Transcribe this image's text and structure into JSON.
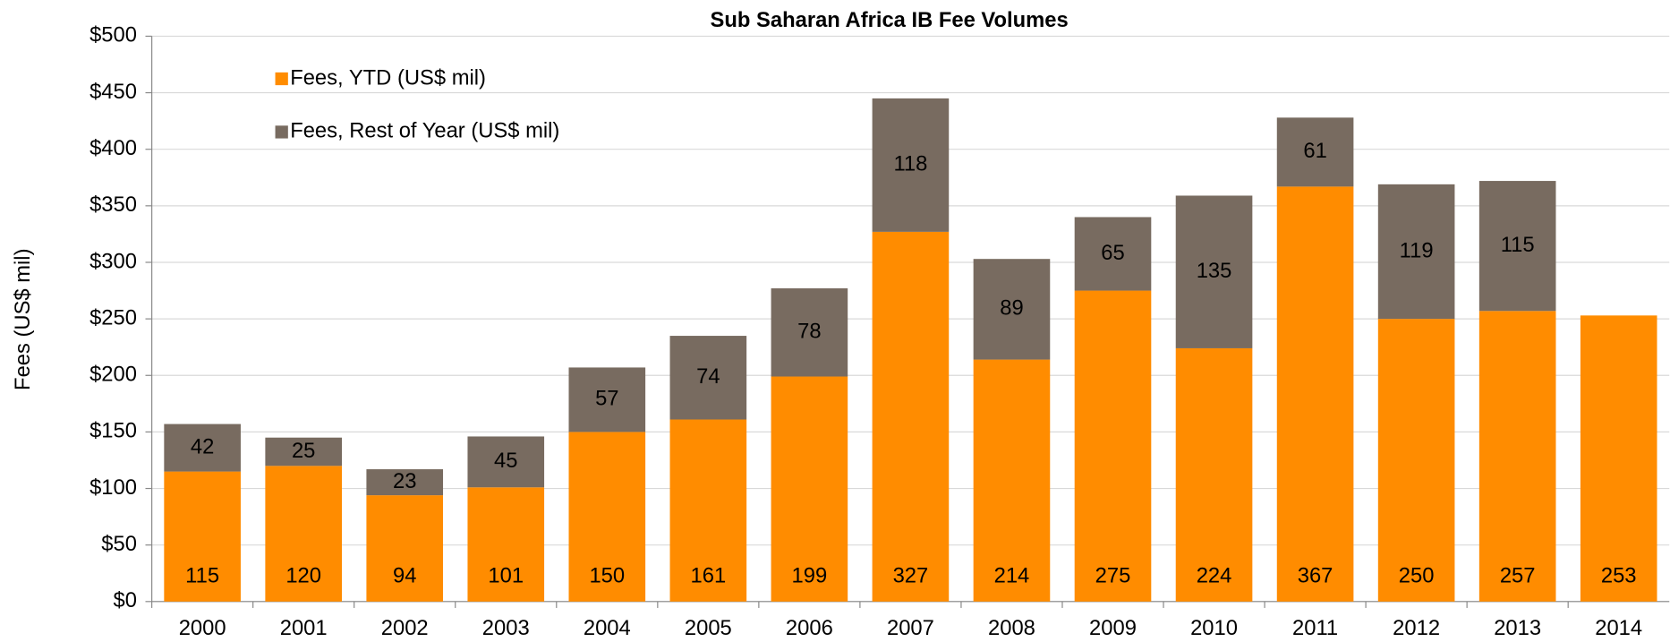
{
  "chart_data": {
    "type": "stacked_bar",
    "title": "Sub Saharan Africa IB Fee Volumes",
    "y_label": "Fees (US$ mil)",
    "categories": [
      "2000",
      "2001",
      "2002",
      "2003",
      "2004",
      "2005",
      "2006",
      "2007",
      "2008",
      "2009",
      "2010",
      "2011",
      "2012",
      "2013",
      "2014"
    ],
    "series": [
      {
        "name": "Fees, YTD (US$ mil)",
        "color": "#ff8c00",
        "values": [
          115,
          120,
          94,
          101,
          150,
          161,
          199,
          327,
          214,
          275,
          224,
          367,
          250,
          257,
          253
        ]
      },
      {
        "name": "Fees, Rest of Year (US$ mil)",
        "color": "#786b60",
        "values": [
          42,
          25,
          23,
          45,
          57,
          74,
          78,
          118,
          89,
          65,
          135,
          61,
          119,
          115,
          null
        ]
      }
    ],
    "ylim": [
      0,
      500
    ],
    "yticks": [
      {
        "value": 0,
        "label": "$0"
      },
      {
        "value": 50,
        "label": "$50"
      },
      {
        "value": 100,
        "label": "$100"
      },
      {
        "value": 150,
        "label": "$150"
      },
      {
        "value": 200,
        "label": "$200"
      },
      {
        "value": 250,
        "label": "$250"
      },
      {
        "value": 300,
        "label": "$300"
      },
      {
        "value": 350,
        "label": "$350"
      },
      {
        "value": 400,
        "label": "$400"
      },
      {
        "value": 450,
        "label": "$450"
      },
      {
        "value": 500,
        "label": "$500"
      }
    ],
    "grid": true
  }
}
